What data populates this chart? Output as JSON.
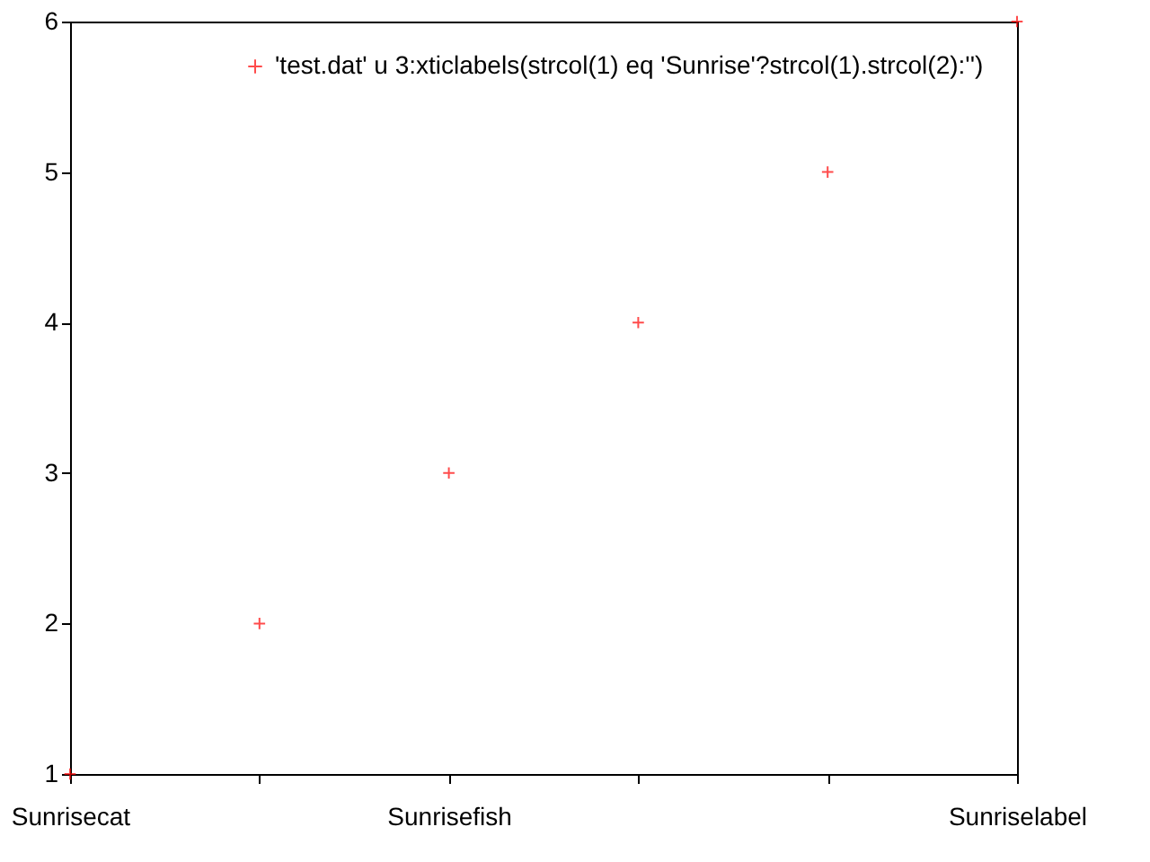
{
  "chart_data": {
    "type": "scatter",
    "categories": [
      "Sunrisecat",
      null,
      "Sunrisefish",
      null,
      null,
      "Sunriselabel"
    ],
    "series": [
      {
        "name": "'test.dat' u 3:xticlabels(strcol(1) eq 'Sunrise'?strcol(1).strcol(2):'')",
        "color": "#ff0000",
        "values": [
          1,
          2,
          3,
          4,
          5,
          6
        ]
      }
    ],
    "ylim": [
      1,
      6
    ],
    "yticks": [
      1,
      2,
      3,
      4,
      5,
      6
    ],
    "grid": false,
    "legend": "top right",
    "marker": "cross"
  }
}
